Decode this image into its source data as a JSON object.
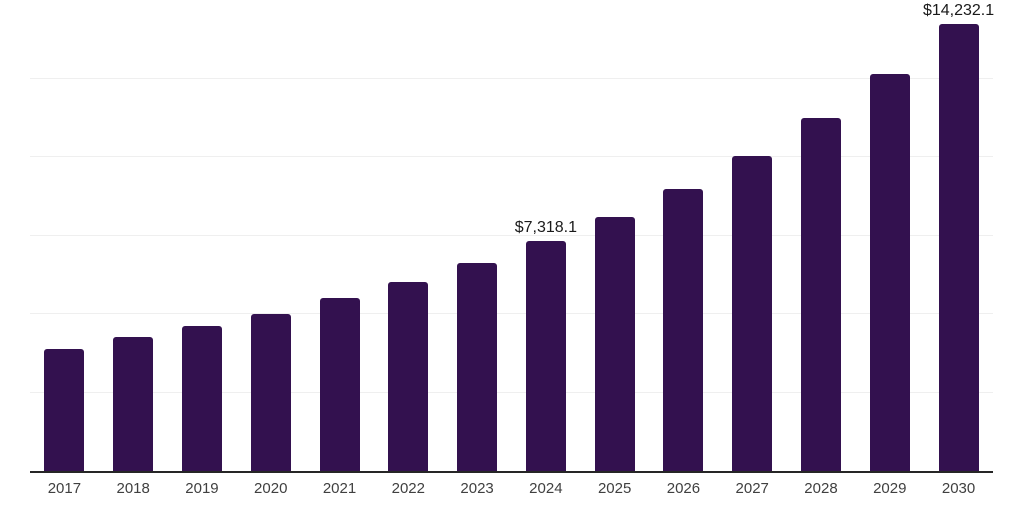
{
  "chart_data": {
    "type": "bar",
    "title": "",
    "xlabel": "",
    "ylabel": "",
    "categories": [
      "2017",
      "2018",
      "2019",
      "2020",
      "2021",
      "2022",
      "2023",
      "2024",
      "2025",
      "2026",
      "2027",
      "2028",
      "2029",
      "2030"
    ],
    "values": [
      3900,
      4255,
      4605,
      4990,
      5505,
      6020,
      6635,
      7318.1,
      8085,
      8985,
      10045,
      11235,
      12650,
      14232.1
    ],
    "data_labels": {
      "2024": "$7,318.1",
      "2030": "$14,232.1"
    },
    "ylim": [
      0,
      15000
    ],
    "grid": true,
    "grid_step": 2500,
    "legend": "none",
    "colors": {
      "bar": "#33114F",
      "axis": "#262626",
      "gridline": "#efefef",
      "data_label": "#1a1a1a",
      "tick_label": "#404040",
      "background": "#ffffff"
    }
  }
}
